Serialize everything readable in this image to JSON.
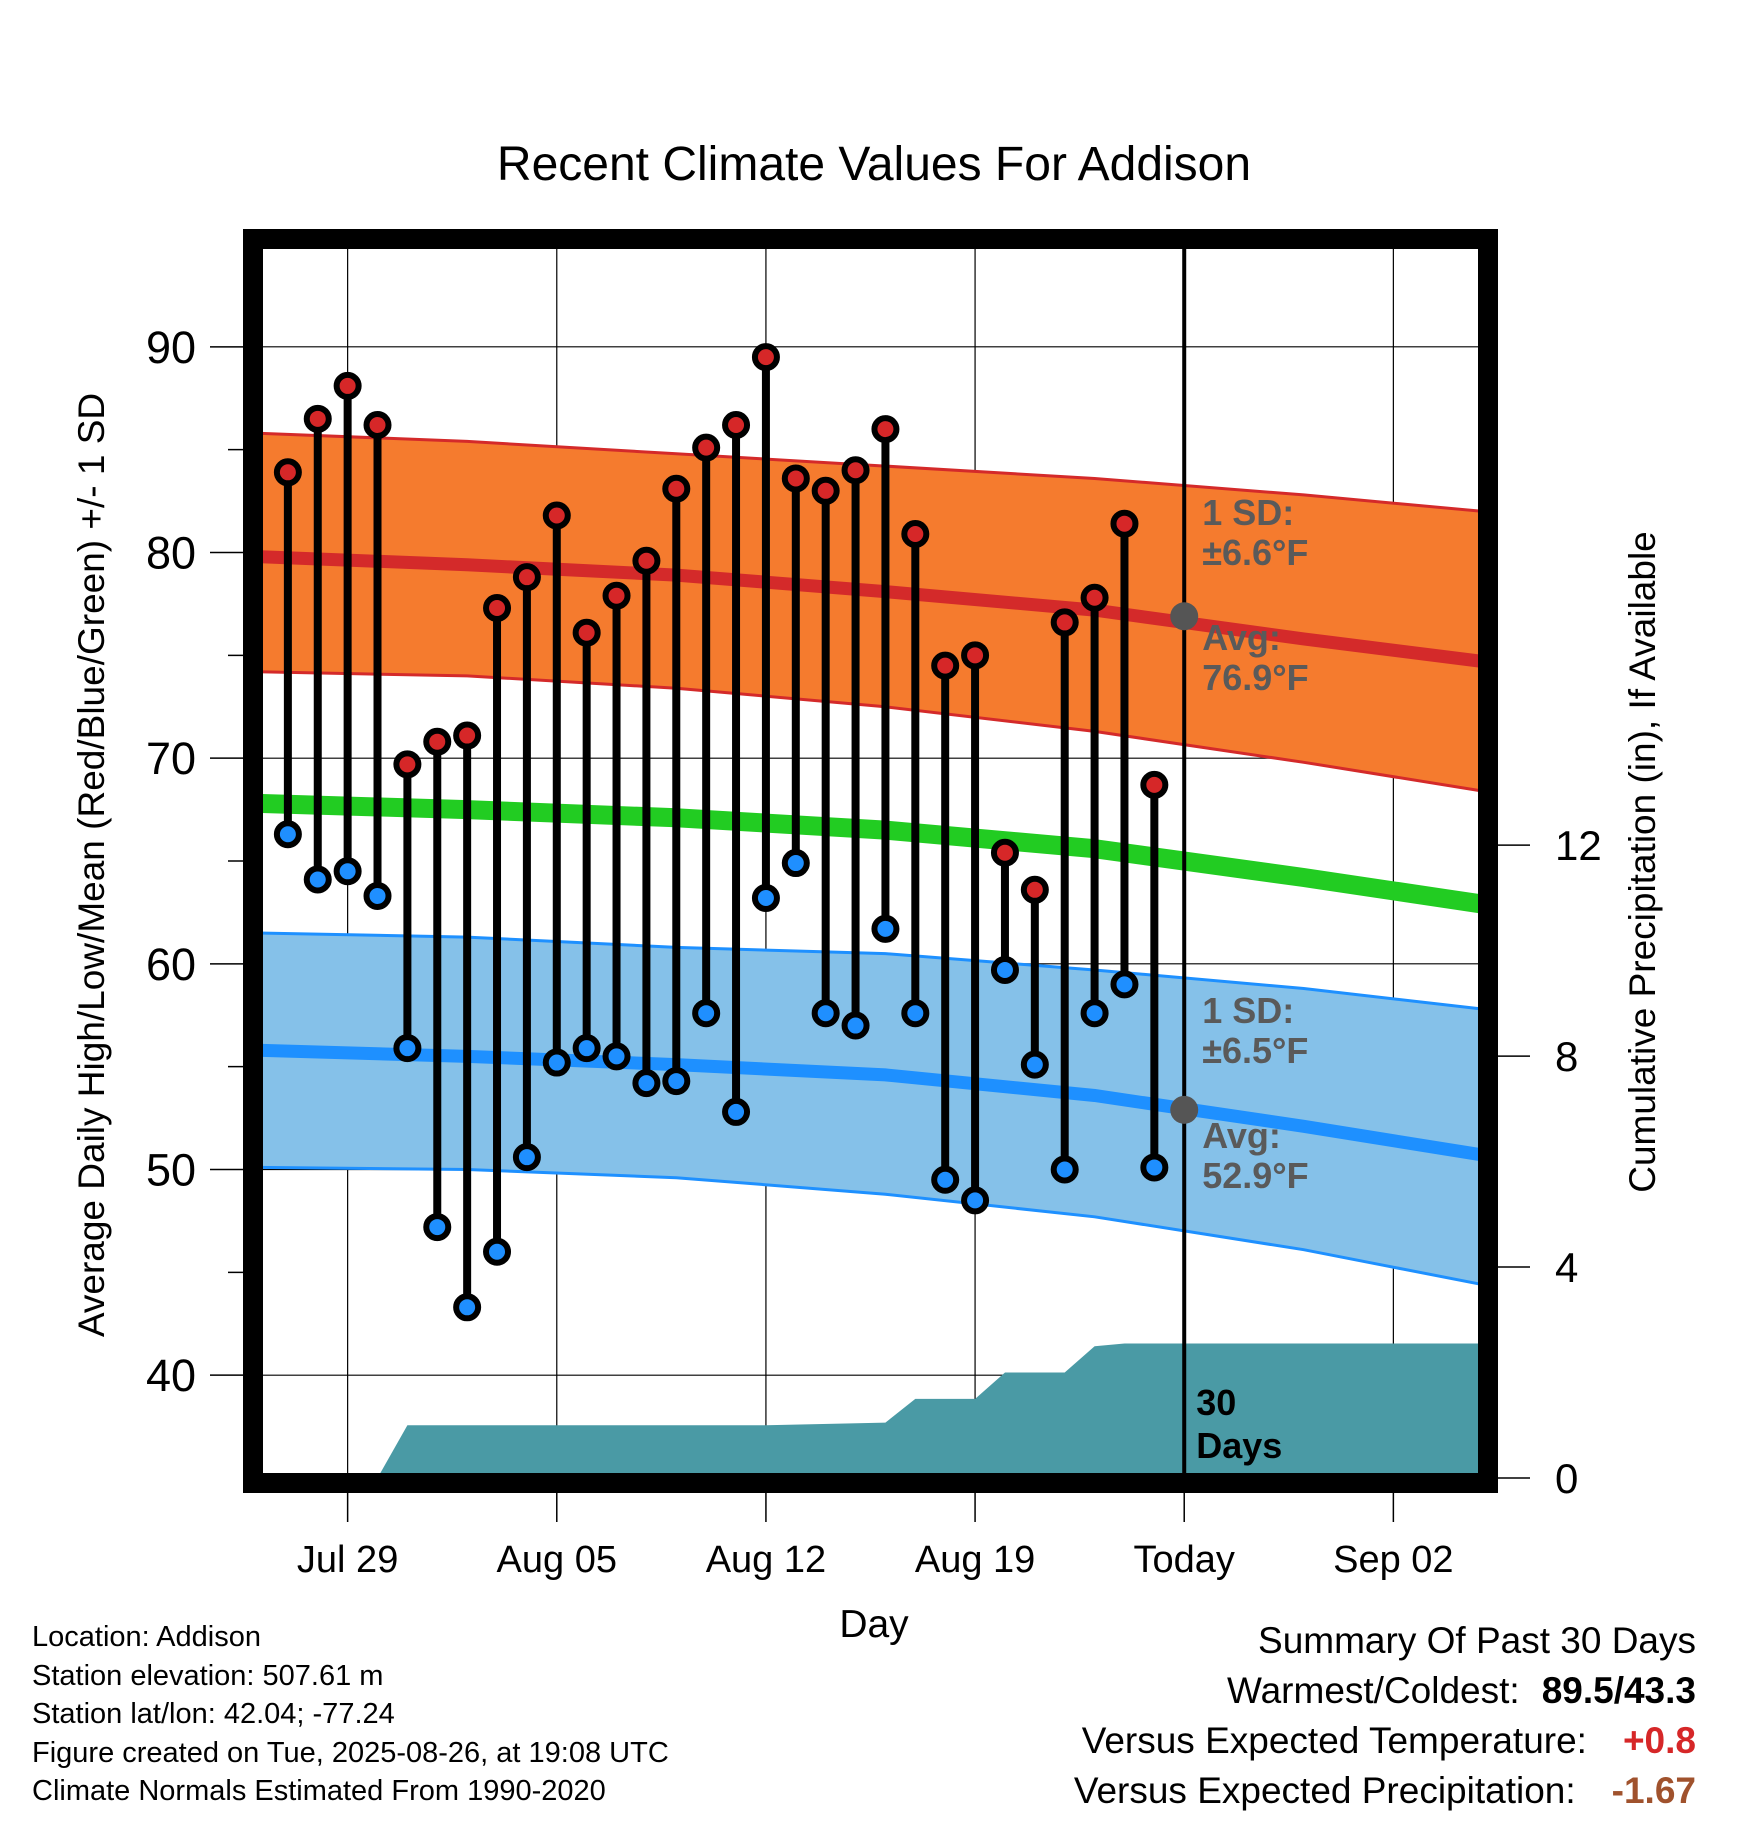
{
  "chart_data": {
    "type": "line",
    "title": "Recent Climate Values For Addison",
    "xlabel": "Day",
    "ylabel_left": "Average Daily High/Low/Mean (Red/Blue/Green) +/- 1 SD",
    "ylabel_right": "Cumulative Precipitation (in), If Available",
    "ylim_left": [
      35,
      95
    ],
    "ylim_right": [
      0,
      23.4
    ],
    "y_ticks_left": [
      40,
      50,
      60,
      70,
      80,
      90
    ],
    "y_ticks_right": [
      0,
      4,
      8,
      12
    ],
    "x_start": "Jul 26",
    "x_end": "Sep 05",
    "x_ticks": [
      "Jul 29",
      "Aug 05",
      "Aug 12",
      "Aug 19",
      "Today",
      "Sep 02"
    ],
    "today": "Aug 26",
    "grid": true,
    "observed": {
      "dates": [
        "Jul 27",
        "Jul 28",
        "Jul 29",
        "Jul 30",
        "Jul 31",
        "Aug 01",
        "Aug 02",
        "Aug 03",
        "Aug 04",
        "Aug 05",
        "Aug 06",
        "Aug 07",
        "Aug 08",
        "Aug 09",
        "Aug 10",
        "Aug 11",
        "Aug 12",
        "Aug 13",
        "Aug 14",
        "Aug 15",
        "Aug 16",
        "Aug 17",
        "Aug 18",
        "Aug 19",
        "Aug 20",
        "Aug 21",
        "Aug 22",
        "Aug 23",
        "Aug 24",
        "Aug 25"
      ],
      "highs": [
        83.9,
        86.5,
        88.1,
        86.2,
        69.7,
        70.8,
        71.1,
        77.3,
        78.8,
        81.8,
        76.1,
        77.9,
        79.6,
        83.1,
        85.1,
        86.2,
        89.5,
        83.6,
        83.0,
        84.0,
        86.0,
        80.9,
        74.5,
        75.0,
        65.4,
        63.6,
        76.6,
        77.8,
        81.4,
        68.7
      ],
      "lows": [
        66.3,
        64.1,
        64.5,
        63.3,
        55.9,
        47.2,
        43.3,
        46.0,
        50.6,
        55.2,
        55.9,
        55.5,
        54.2,
        54.3,
        57.6,
        52.8,
        63.2,
        64.9,
        57.6,
        57.0,
        61.7,
        57.6,
        49.5,
        48.5,
        59.7,
        55.1,
        50.0,
        57.6,
        59.0,
        50.1
      ]
    },
    "normals": {
      "dates": [
        "Jul 26",
        "Aug 02",
        "Aug 09",
        "Aug 16",
        "Aug 23",
        "Aug 30",
        "Sep 05"
      ],
      "avg_high": [
        79.8,
        79.4,
        78.9,
        78.1,
        77.2,
        75.8,
        74.7
      ],
      "high_sd_upper": [
        85.8,
        85.4,
        84.8,
        84.2,
        83.6,
        82.8,
        82.0
      ],
      "high_sd_lower": [
        74.2,
        74.0,
        73.4,
        72.5,
        71.3,
        69.8,
        68.4
      ],
      "avg_mean": [
        67.8,
        67.5,
        67.1,
        66.5,
        65.6,
        64.2,
        62.9
      ],
      "avg_low": [
        55.8,
        55.5,
        55.1,
        54.6,
        53.6,
        52.1,
        50.7
      ],
      "low_sd_upper": [
        61.5,
        61.3,
        60.8,
        60.5,
        59.7,
        58.8,
        57.8
      ],
      "low_sd_lower": [
        50.1,
        50.0,
        49.6,
        48.8,
        47.7,
        46.1,
        44.4
      ]
    },
    "today_marker": {
      "avg_high": 76.9,
      "avg_low": 52.9,
      "high_label_sd": "1 SD:",
      "high_sd_value": "±6.6°F",
      "high_label_avg": "Avg:",
      "high_avg_value": "76.9°F",
      "low_label_sd": "1 SD:",
      "low_sd_value": "±6.5°F",
      "low_label_avg": "Avg:",
      "low_avg_value": "52.9°F"
    },
    "precipitation": {
      "dates": [
        "Jul 29",
        "Jul 30",
        "Jul 31",
        "Aug 12",
        "Aug 16",
        "Aug 17",
        "Aug 19",
        "Aug 20",
        "Aug 22",
        "Aug 23",
        "Aug 24",
        "Sep 05"
      ],
      "cumulative": [
        0.0,
        0.0,
        1.0,
        1.0,
        1.05,
        1.5,
        1.5,
        2.0,
        2.0,
        2.5,
        2.55,
        2.55
      ]
    },
    "window_label_line1": "30",
    "window_label_line2": "Days",
    "colors": {
      "high_band": "#f57b2e",
      "high_line": "#d42a2a",
      "mean_line": "#22cc22",
      "low_band": "#85c1e9",
      "low_line": "#1e90ff",
      "precip": "#4a9aa5",
      "high_dot": "#d62728",
      "low_dot": "#1f8fff",
      "today_dot": "#555555",
      "label_gray": "#5a5a5a"
    }
  },
  "footer": {
    "location": "Location: Addison",
    "elevation": "Station elevation: 507.61 m",
    "latlon": "Station lat/lon: 42.04; -77.24",
    "created": "Figure created on Tue, 2025-08-26, at 19:08 UTC",
    "normals": "Climate Normals Estimated From 1990-2020"
  },
  "summary": {
    "title": "Summary Of Past 30 Days",
    "warm_cold_label": "Warmest/Coldest:",
    "warm_cold_value": "89.5/43.3",
    "temp_label": "Versus Expected Temperature:",
    "temp_value": "+0.8",
    "precip_label": "Versus Expected Precipitation:",
    "precip_value": "-1.67"
  }
}
